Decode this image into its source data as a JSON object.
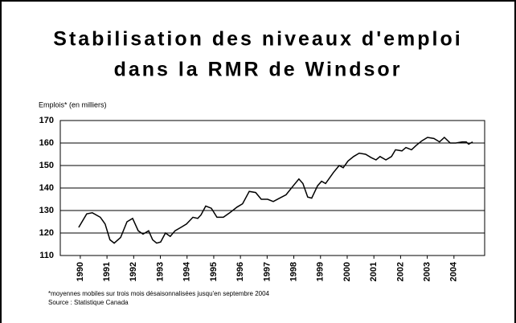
{
  "chart_data": {
    "type": "line",
    "title": [
      "Stabilisation des niveaux d'emploi",
      "dans la RMR de Windsor"
    ],
    "y_label": "Emplois* (en milliers)",
    "notes": [
      "*moyennes mobiles sur trois mois désaisonnalisées jusqu'en septembre 2004",
      "Source : Statistique Canada"
    ],
    "x": [
      1989.94,
      1990.24,
      1990.45,
      1990.75,
      1990.93,
      1991.11,
      1991.27,
      1991.51,
      1991.75,
      1991.96,
      1992.17,
      1992.35,
      1992.56,
      1992.71,
      1992.86,
      1993.01,
      1993.19,
      1993.37,
      1993.55,
      1993.77,
      1993.98,
      1994.22,
      1994.4,
      1994.52,
      1994.7,
      1994.91,
      1995.12,
      1995.36,
      1995.6,
      1995.87,
      1996.08,
      1996.33,
      1996.57,
      1996.78,
      1997.02,
      1997.23,
      1997.47,
      1997.71,
      1997.98,
      1998.19,
      1998.34,
      1998.52,
      1998.67,
      1998.89,
      1999.04,
      1999.19,
      1999.49,
      1999.7,
      1999.85,
      2000.03,
      2000.24,
      2000.45,
      2000.69,
      2000.9,
      2001.08,
      2001.23,
      2001.45,
      2001.66,
      2001.81,
      2002.05,
      2002.2,
      2002.41,
      2002.59,
      2002.8,
      2003.01,
      2003.25,
      2003.46,
      2003.64,
      2003.86,
      2004.07,
      2004.31,
      2004.46,
      2004.55,
      2004.7
    ],
    "values": [
      122.5,
      128.5,
      129,
      127,
      124,
      117,
      115.5,
      118,
      125,
      126.5,
      121,
      119.5,
      121,
      117,
      115.5,
      116,
      120,
      118.5,
      121,
      122.5,
      124,
      127,
      126.5,
      128,
      132,
      131,
      127,
      127,
      129,
      131.5,
      133,
      138.5,
      138,
      135,
      135,
      134,
      135.5,
      137,
      141,
      144,
      142,
      136,
      135.5,
      141,
      143,
      142,
      147,
      150,
      149,
      152,
      154,
      155.5,
      155,
      153.5,
      152.5,
      154,
      152.5,
      154,
      157,
      156.5,
      158,
      157,
      159,
      161,
      162.5,
      162,
      160.5,
      162.5,
      160,
      160,
      160.5,
      160.5,
      159.5,
      160.5
    ],
    "color": "#000000",
    "xlim": [
      1989.25,
      2005.15
    ],
    "xticks": [
      1990,
      1991,
      1992,
      1993,
      1994,
      1995,
      1996,
      1997,
      1998,
      1999,
      2000,
      2001,
      2002,
      2003,
      2004
    ],
    "ylim": [
      110,
      170
    ],
    "yticks": [
      110,
      120,
      130,
      140,
      150,
      160,
      170
    ],
    "grid": true
  }
}
